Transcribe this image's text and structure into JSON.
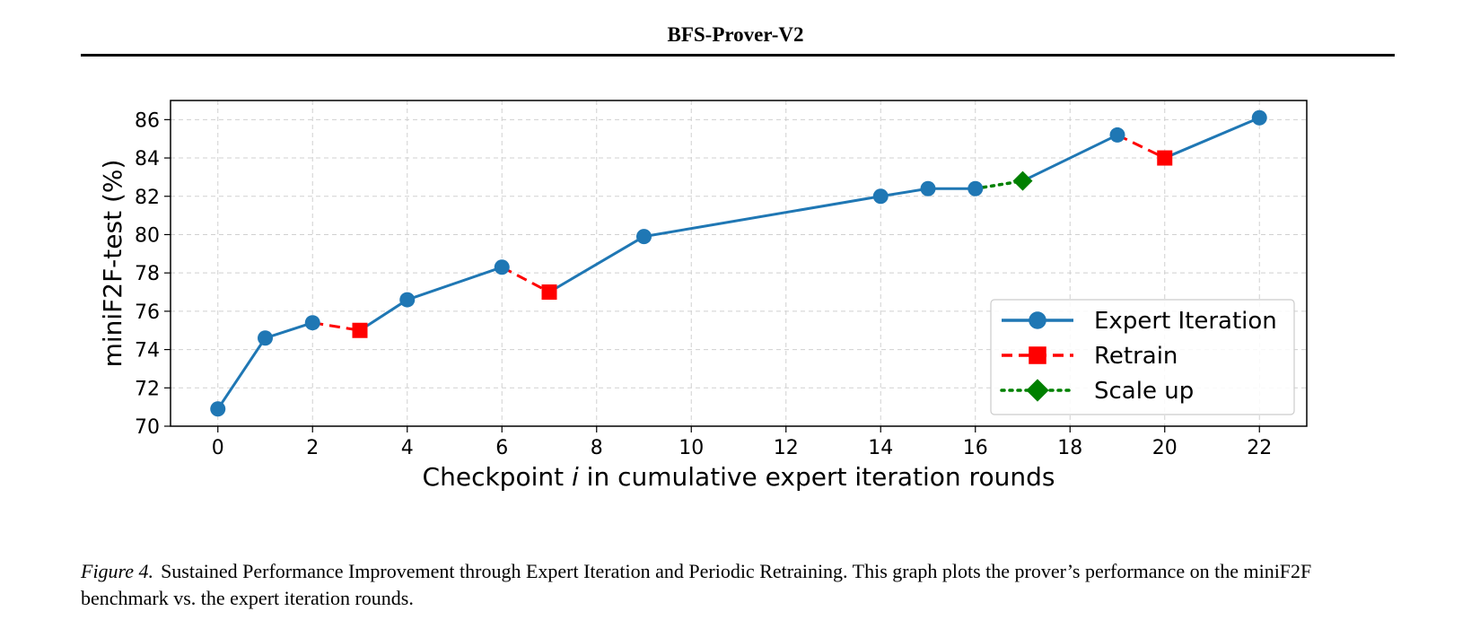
{
  "header": {
    "title": "BFS-Prover-V2"
  },
  "chart_data": {
    "type": "line",
    "xlabel_prefix": "Checkpoint ",
    "xlabel_var": "i",
    "xlabel_suffix": " in cumulative expert iteration rounds",
    "ylabel": "miniF2F-test (%)",
    "xlim": [
      -1,
      23
    ],
    "ylim": [
      70,
      87
    ],
    "xticks": [
      0,
      2,
      4,
      6,
      8,
      10,
      12,
      14,
      16,
      18,
      20,
      22
    ],
    "yticks": [
      70,
      72,
      74,
      76,
      78,
      80,
      82,
      84,
      86
    ],
    "grid": true,
    "legend_position": "lower-right",
    "series": [
      {
        "name": "Expert Iteration",
        "color": "#1f77b4",
        "line_style": "solid",
        "marker": "circle",
        "segments": [
          [
            [
              0,
              70.9
            ],
            [
              1,
              74.6
            ],
            [
              2,
              75.4
            ]
          ],
          [
            [
              3,
              75.0
            ],
            [
              4,
              76.6
            ],
            [
              6,
              78.3
            ]
          ],
          [
            [
              7,
              77.0
            ],
            [
              9,
              79.9
            ],
            [
              14,
              82.0
            ],
            [
              15,
              82.4
            ],
            [
              16,
              82.4
            ]
          ],
          [
            [
              17,
              82.8
            ],
            [
              19,
              85.2
            ]
          ],
          [
            [
              20,
              84.0
            ],
            [
              22,
              86.1
            ]
          ]
        ],
        "points": [
          [
            0,
            70.9
          ],
          [
            1,
            74.6
          ],
          [
            2,
            75.4
          ],
          [
            4,
            76.6
          ],
          [
            6,
            78.3
          ],
          [
            9,
            79.9
          ],
          [
            14,
            82.0
          ],
          [
            15,
            82.4
          ],
          [
            16,
            82.4
          ],
          [
            19,
            85.2
          ],
          [
            22,
            86.1
          ]
        ]
      },
      {
        "name": "Retrain",
        "color": "#ff0000",
        "line_style": "dashed",
        "marker": "square",
        "segments": [
          [
            [
              2,
              75.4
            ],
            [
              3,
              75.0
            ]
          ],
          [
            [
              6,
              78.3
            ],
            [
              7,
              77.0
            ]
          ],
          [
            [
              19,
              85.2
            ],
            [
              20,
              84.0
            ]
          ]
        ],
        "points": [
          [
            3,
            75.0
          ],
          [
            7,
            77.0
          ],
          [
            20,
            84.0
          ]
        ]
      },
      {
        "name": "Scale up",
        "color": "#008000",
        "line_style": "dotted",
        "marker": "diamond",
        "segments": [
          [
            [
              16,
              82.4
            ],
            [
              17,
              82.8
            ]
          ]
        ],
        "points": [
          [
            17,
            82.8
          ]
        ]
      }
    ]
  },
  "caption": {
    "figure_label": "Figure 4.",
    "text": "Sustained Performance Improvement through Expert Iteration and Periodic Retraining. This graph plots the prover’s performance on the miniF2F benchmark vs. the expert iteration rounds."
  }
}
